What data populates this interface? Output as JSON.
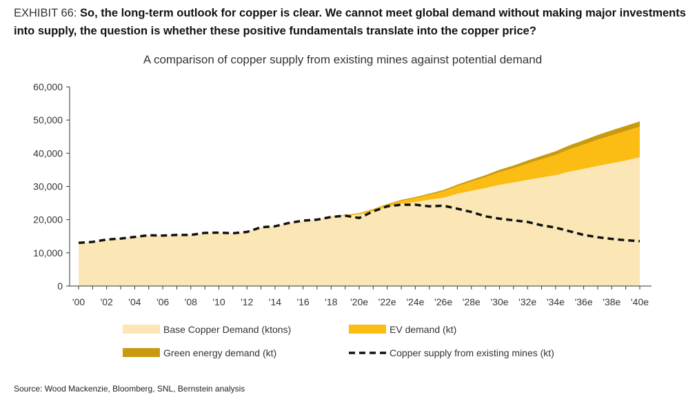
{
  "header": {
    "exhibit_label": "EXHIBIT 66:",
    "title": "So, the long-term outlook for copper is clear. We cannot meet global demand without making major investments into supply, the question is whether these positive fundamentals translate into the copper price?"
  },
  "source": "Source: Wood Mackenzie, Bloomberg, SNL, Bernstein analysis",
  "chart_data": {
    "type": "area",
    "title": "A comparison of copper supply from existing mines against potential demand",
    "xlabel": "",
    "ylabel": "",
    "ylim": [
      0,
      60000
    ],
    "grid": false,
    "y_ticks": [
      "0",
      "10,000",
      "20,000",
      "30,000",
      "40,000",
      "50,000",
      "60,000"
    ],
    "y_tick_values": [
      0,
      10000,
      20000,
      30000,
      40000,
      50000,
      60000
    ],
    "x": [
      2000,
      2001,
      2002,
      2003,
      2004,
      2005,
      2006,
      2007,
      2008,
      2009,
      2010,
      2011,
      2012,
      2013,
      2014,
      2015,
      2016,
      2017,
      2018,
      2019,
      2020,
      2021,
      2022,
      2023,
      2024,
      2025,
      2026,
      2027,
      2028,
      2029,
      2030,
      2031,
      2032,
      2033,
      2034,
      2035,
      2036,
      2037,
      2038,
      2039,
      2040
    ],
    "x_tick_labels": [
      "'00",
      "'02",
      "'04",
      "'06",
      "'08",
      "'10",
      "'12",
      "'14",
      "'16",
      "'18",
      "'20e",
      "'22e",
      "'24e",
      "'26e",
      "'28e",
      "'30e",
      "'32e",
      "'34e",
      "'36e",
      "'38e",
      "'40e"
    ],
    "x_tick_years": [
      2000,
      2002,
      2004,
      2006,
      2008,
      2010,
      2012,
      2014,
      2016,
      2018,
      2020,
      2022,
      2024,
      2026,
      2028,
      2030,
      2032,
      2034,
      2036,
      2038,
      2040
    ],
    "legend_position": "bottom",
    "colors": {
      "base": "#fbe7b5",
      "ev": "#fbbc13",
      "green": "#c99a0e",
      "supply": "#111111",
      "axis": "#333333"
    },
    "series": [
      {
        "name": "Base Copper Demand (ktons)",
        "kind": "stacked-area",
        "color_key": "base",
        "values": [
          13000,
          13300,
          14000,
          14300,
          14800,
          15300,
          15200,
          15400,
          15400,
          16000,
          16100,
          15900,
          16300,
          17700,
          18000,
          19000,
          19700,
          20000,
          20800,
          21200,
          21500,
          22500,
          23800,
          24800,
          25300,
          26000,
          26600,
          27800,
          28700,
          29500,
          30500,
          31200,
          32000,
          32700,
          33400,
          34500,
          35300,
          36200,
          37000,
          37800,
          38800
        ]
      },
      {
        "name": "EV demand (kt)",
        "kind": "stacked-area",
        "color_key": "ev",
        "values": [
          0,
          0,
          0,
          0,
          0,
          0,
          0,
          0,
          0,
          0,
          0,
          0,
          0,
          0,
          0,
          0,
          0,
          0,
          100,
          250,
          400,
          550,
          700,
          900,
          1200,
          1500,
          1900,
          2300,
          2800,
          3300,
          3800,
          4300,
          4900,
          5500,
          6100,
          6700,
          7300,
          7900,
          8400,
          8900,
          9200
        ]
      },
      {
        "name": "Green energy demand (kt)",
        "kind": "stacked-area",
        "color_key": "green",
        "values": [
          0,
          0,
          0,
          0,
          0,
          0,
          0,
          0,
          0,
          0,
          0,
          0,
          0,
          0,
          0,
          0,
          0,
          0,
          0,
          50,
          100,
          150,
          200,
          250,
          300,
          350,
          400,
          450,
          500,
          600,
          700,
          800,
          900,
          1000,
          1100,
          1200,
          1300,
          1400,
          1500,
          1550,
          1600
        ]
      },
      {
        "name": "Copper supply from existing mines (kt)",
        "kind": "dashed-line",
        "color_key": "supply",
        "values": [
          13000,
          13300,
          14000,
          14300,
          14800,
          15300,
          15200,
          15400,
          15400,
          16000,
          16100,
          15900,
          16300,
          17700,
          18000,
          19000,
          19700,
          20000,
          20800,
          21200,
          20500,
          22500,
          24000,
          24500,
          24500,
          24000,
          24200,
          23300,
          22300,
          21000,
          20300,
          19800,
          19300,
          18300,
          17600,
          16500,
          15400,
          14700,
          14200,
          13800,
          13500
        ]
      }
    ],
    "legend_order": [
      0,
      1,
      2,
      3
    ]
  }
}
